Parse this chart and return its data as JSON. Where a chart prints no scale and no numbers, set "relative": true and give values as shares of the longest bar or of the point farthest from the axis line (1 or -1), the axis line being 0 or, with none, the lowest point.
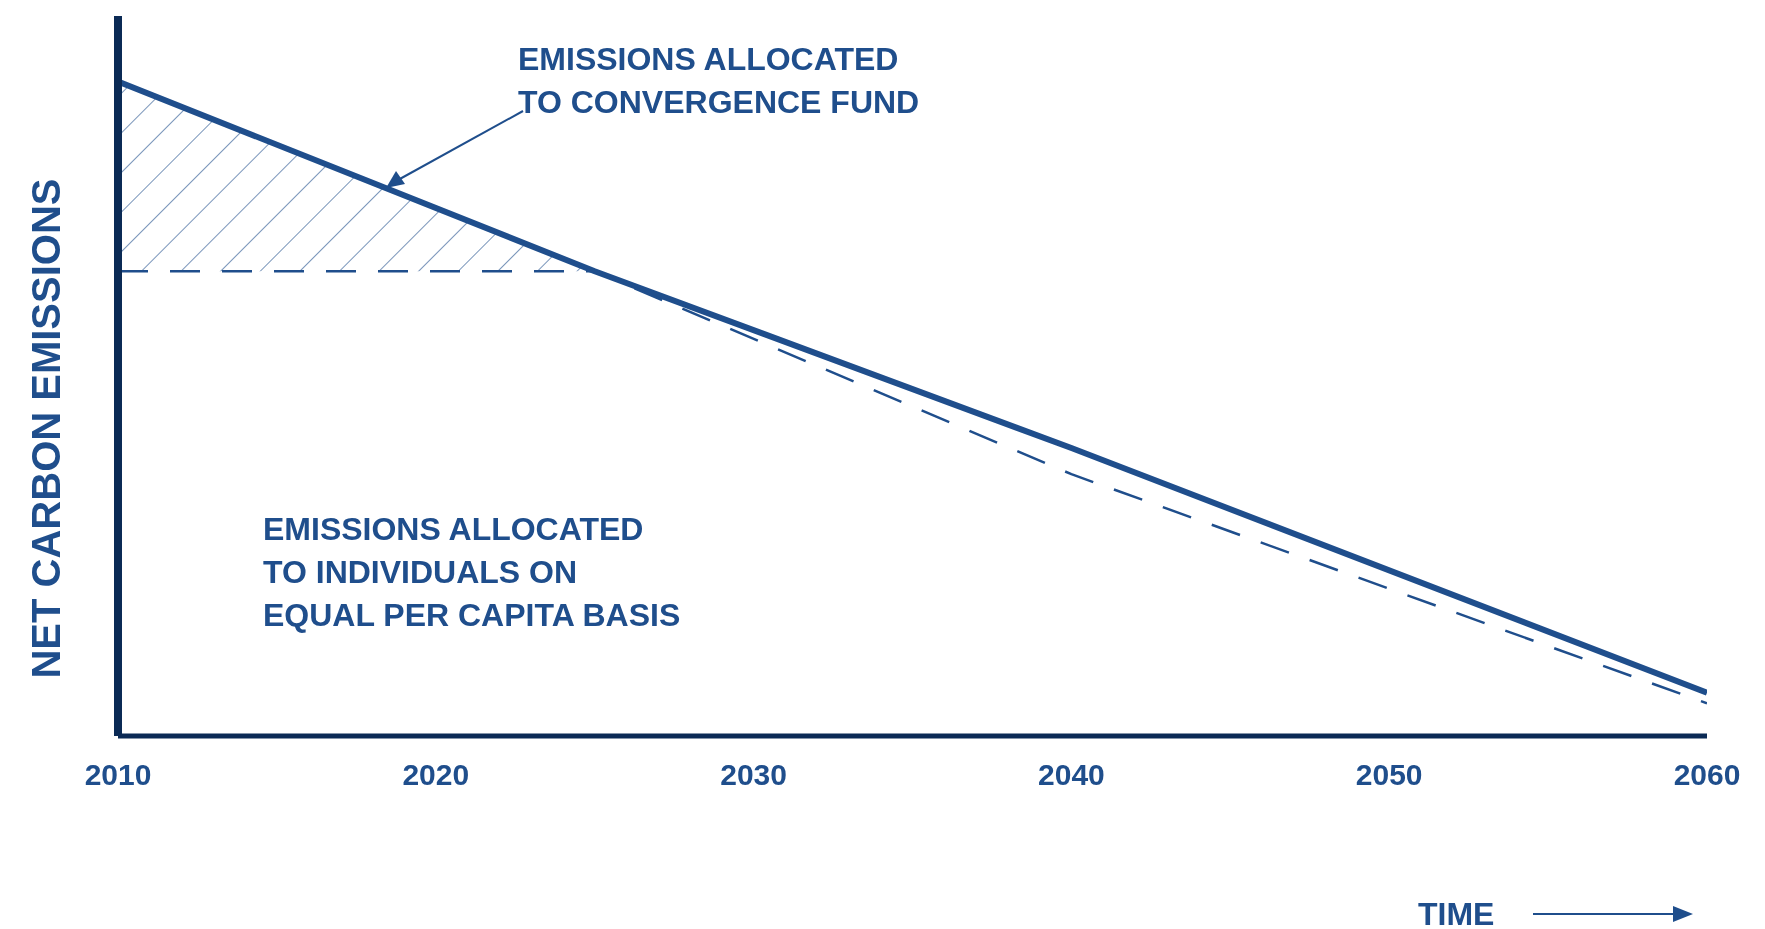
{
  "chart_data": {
    "type": "line",
    "relative": true,
    "xlabel": "TIME",
    "ylabel": "NET CARBON EMISSIONS",
    "x": [
      2010,
      2025,
      2040,
      2060
    ],
    "xlim": [
      2010,
      2060
    ],
    "xticks": [
      2010,
      2020,
      2030,
      2040,
      2050,
      2060
    ],
    "series": [
      {
        "color": "#1f4e8c",
        "line_style": "solid",
        "values": [
          1,
          0.71,
          0.44,
          0.066
        ],
        "lower": [
          0.71,
          0.71,
          null,
          null
        ],
        "upper": [
          1,
          0.71,
          null,
          null
        ]
      },
      {
        "color": "#1f4e8c",
        "line_style": "dashed",
        "values": [
          0.71,
          0.71,
          0.4,
          0.05
        ]
      }
    ],
    "annotations": [
      "EMISSIONS ALLOCATED\nTO CONVERGENCE FUND",
      "EMISSIONS ALLOCATED\nTO INDIVIDUALS ON\nEQUAL PER CAPITA BASIS"
    ],
    "grid": false,
    "legend": false,
    "marker": "none"
  }
}
